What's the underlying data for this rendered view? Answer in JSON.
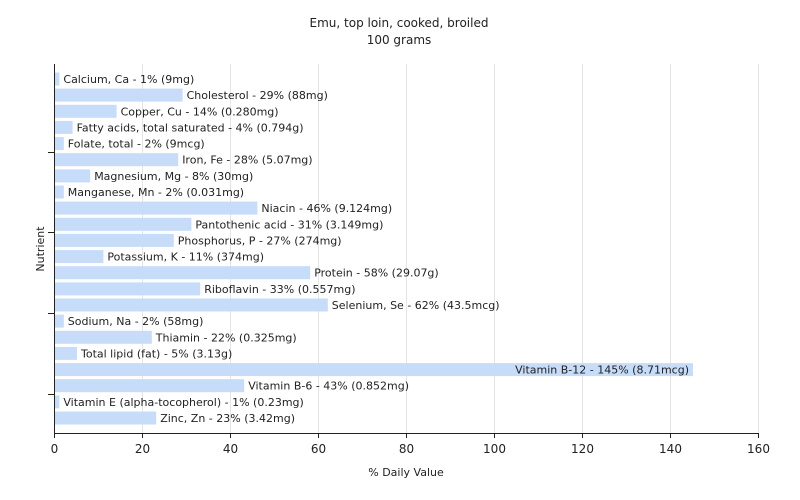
{
  "chart_data": {
    "type": "bar",
    "orientation": "horizontal",
    "title": "Emu, top loin, cooked, broiled",
    "subtitle": "100 grams",
    "xlabel": "% Daily Value",
    "ylabel": "Nutrient",
    "xlim": [
      0,
      160
    ],
    "xticks": [
      0,
      20,
      40,
      60,
      80,
      100,
      120,
      140,
      160
    ],
    "grid": "vertical",
    "bar_color": "#c6dcf9",
    "categories": [
      "Calcium, Ca - 1% (9mg)",
      "Cholesterol - 29% (88mg)",
      "Copper, Cu - 14% (0.280mg)",
      "Fatty acids, total saturated - 4% (0.794g)",
      "Folate, total - 2% (9mcg)",
      "Iron, Fe - 28% (5.07mg)",
      "Magnesium, Mg - 8% (30mg)",
      "Manganese, Mn - 2% (0.031mg)",
      "Niacin - 46% (9.124mg)",
      "Pantothenic acid - 31% (3.149mg)",
      "Phosphorus, P - 27% (274mg)",
      "Potassium, K - 11% (374mg)",
      "Protein - 58% (29.07g)",
      "Riboflavin - 33% (0.557mg)",
      "Selenium, Se - 62% (43.5mcg)",
      "Sodium, Na - 2% (58mg)",
      "Thiamin - 22% (0.325mg)",
      "Total lipid (fat) - 5% (3.13g)",
      "Vitamin B-12 - 145% (8.71mcg)",
      "Vitamin B-6 - 43% (0.852mg)",
      "Vitamin E (alpha-tocopherol) - 1% (0.23mg)",
      "Zinc, Zn - 23% (3.42mg)"
    ],
    "values": [
      1,
      29,
      14,
      4,
      2,
      28,
      8,
      2,
      46,
      31,
      27,
      11,
      58,
      33,
      62,
      2,
      22,
      5,
      145,
      43,
      1,
      23
    ]
  }
}
